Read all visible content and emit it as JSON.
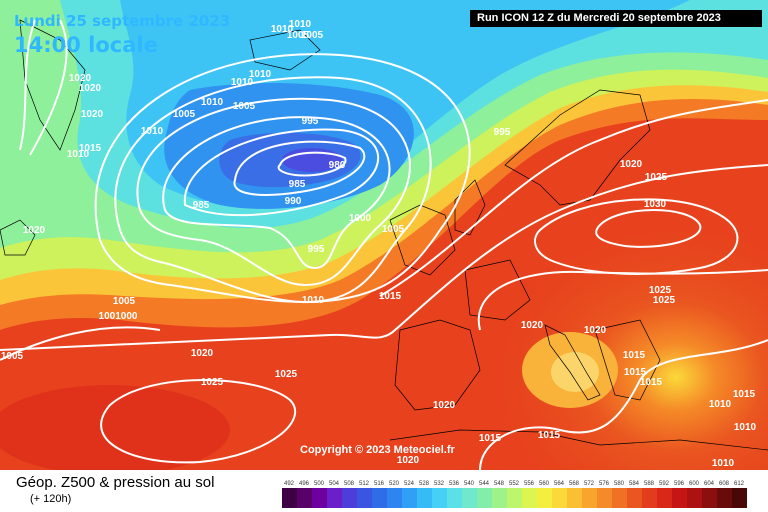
{
  "header": {
    "date": "Lundi 25 septembre 2023",
    "time": "14:00 locale",
    "run": "Run ICON 12 Z du Mercredi 20 septembre 2023"
  },
  "copyright": "Copyright © 2023 Meteociel.fr",
  "legend": {
    "title": "Géop. Z500 & pression au sol",
    "subtitle": "(+ 120h)",
    "scale_values": [
      "492",
      "496",
      "500",
      "504",
      "508",
      "512",
      "516",
      "520",
      "524",
      "528",
      "532",
      "536",
      "540",
      "544",
      "548",
      "552",
      "556",
      "560",
      "564",
      "568",
      "572",
      "576",
      "580",
      "584",
      "588",
      "592",
      "596",
      "600",
      "604",
      "608",
      "612"
    ],
    "scale_colors": [
      "#3d0044",
      "#5a006a",
      "#6e00a0",
      "#6a1fc9",
      "#4d3ed9",
      "#3a55e2",
      "#2f6ce8",
      "#2f85ef",
      "#2fa0f5",
      "#36bbf7",
      "#47d0f5",
      "#5ce0e8",
      "#6fe8cc",
      "#82eeaa",
      "#9ef28a",
      "#bdf56c",
      "#dcf550",
      "#f4ef3e",
      "#fbd93a",
      "#fbbf34",
      "#f9a42d",
      "#f58a28",
      "#f07024",
      "#ea5620",
      "#e33c1c",
      "#d92718",
      "#c51515",
      "#ad1212",
      "#8c0f0f",
      "#6a0b0b",
      "#4a0707"
    ]
  },
  "isobars": [
    "1020",
    "1020",
    "1020",
    "1015",
    "1010",
    "1020",
    "1010",
    "1005",
    "1005",
    "1010",
    "1010",
    "1010",
    "1010",
    "1005",
    "1005",
    "1010",
    "995",
    "980",
    "985",
    "990",
    "985",
    "995",
    "1000",
    "1005",
    "995",
    "1010",
    "1015",
    "1020",
    "1025",
    "1030",
    "1025",
    "1025",
    "1020",
    "1020",
    "1015",
    "1015",
    "1015",
    "1015",
    "1010",
    "1010",
    "1020",
    "1015",
    "1015",
    "1020",
    "1025",
    "1005",
    "1001000",
    "1005",
    "1020",
    "1025",
    "1010"
  ]
}
